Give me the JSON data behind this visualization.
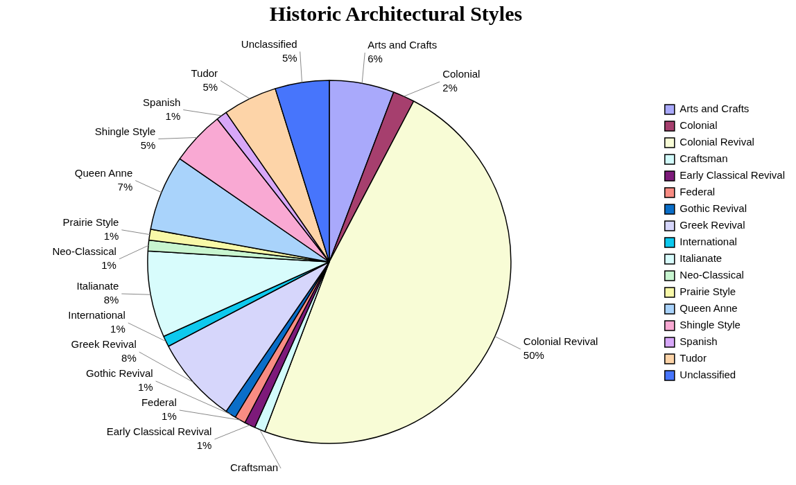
{
  "chart_data": {
    "type": "pie",
    "title": "Historic Architectural Styles",
    "categories": [
      "Arts and Crafts",
      "Colonial",
      "Colonial Revival",
      "Craftsman",
      "Early Classical Revival",
      "Federal",
      "Gothic Revival",
      "Greek Revival",
      "International",
      "Italianate",
      "Neo-Classical",
      "Prairie Style",
      "Queen Anne",
      "Shingle Style",
      "Spanish",
      "Tudor",
      "Unclassified"
    ],
    "values": [
      6,
      2,
      50,
      1,
      1,
      1,
      1,
      8,
      1,
      8,
      1,
      1,
      7,
      5,
      1,
      5,
      5
    ],
    "value_labels": [
      "6%",
      "2%",
      "50%",
      null,
      "1%",
      "1%",
      "1%",
      "8%",
      "1%",
      "8%",
      "1%",
      "1%",
      "7%",
      "5%",
      "1%",
      "5%",
      "5%"
    ],
    "colors": [
      "#a9a9fb",
      "#a63f6e",
      "#f8fcd6",
      "#d2fbfb",
      "#7d1a7a",
      "#f88c83",
      "#0a6ec8",
      "#d6d6fb",
      "#0ec9ee",
      "#d8fcfc",
      "#c8f5d0",
      "#f8f8a8",
      "#a9d3fb",
      "#f9a9d3",
      "#d7a7f8",
      "#fdd4a8",
      "#4775fc"
    ],
    "legend": "right"
  }
}
